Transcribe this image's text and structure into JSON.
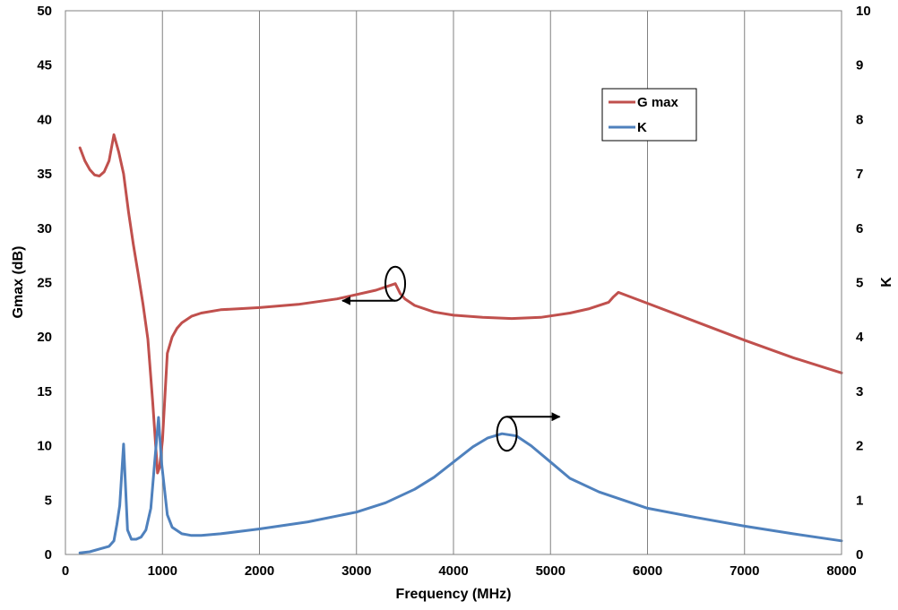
{
  "chart_data": {
    "type": "line",
    "xlabel": "Frequency (MHz)",
    "ylabel_left": "Gmax (dB)",
    "ylabel_right": "K",
    "xlim": [
      0,
      8000
    ],
    "ylim_left": [
      0,
      50
    ],
    "ylim_right": [
      0,
      10
    ],
    "x_ticks": [
      "0",
      "1000",
      "2000",
      "3000",
      "4000",
      "5000",
      "6000",
      "7000",
      "8000"
    ],
    "y_left_ticks": [
      "0",
      "5",
      "10",
      "15",
      "20",
      "25",
      "30",
      "35",
      "40",
      "45",
      "50"
    ],
    "y_right_ticks": [
      "0",
      "1",
      "2",
      "3",
      "4",
      "5",
      "6",
      "7",
      "8",
      "9",
      "10"
    ],
    "grid": "vertical",
    "legend_position": "top-right",
    "series": [
      {
        "name": "G max",
        "axis": "left",
        "color": "#c0504d",
        "x": [
          150,
          200,
          250,
          300,
          350,
          400,
          450,
          500,
          550,
          600,
          650,
          700,
          750,
          800,
          850,
          900,
          950,
          970,
          1000,
          1050,
          1100,
          1150,
          1200,
          1300,
          1400,
          1600,
          1800,
          2000,
          2400,
          2800,
          3200,
          3400,
          3450,
          3500,
          3600,
          3800,
          4000,
          4300,
          4600,
          4900,
          5200,
          5400,
          5600,
          5650,
          5700,
          6000,
          6500,
          7000,
          7500,
          8000
        ],
        "values": [
          37.4,
          36.2,
          35.4,
          34.9,
          34.8,
          35.2,
          36.2,
          38.6,
          37.0,
          35.0,
          31.5,
          28.5,
          25.8,
          23.0,
          19.8,
          14.0,
          7.5,
          8.0,
          10.5,
          18.5,
          20.0,
          20.8,
          21.3,
          21.9,
          22.2,
          22.5,
          22.6,
          22.7,
          23.0,
          23.5,
          24.3,
          24.9,
          24.0,
          23.5,
          22.9,
          22.3,
          22.0,
          21.8,
          21.7,
          21.8,
          22.2,
          22.6,
          23.2,
          23.7,
          24.1,
          23.1,
          21.4,
          19.7,
          18.1,
          16.7
        ]
      },
      {
        "name": "K",
        "axis": "right",
        "color": "#4f81bd",
        "x": [
          150,
          250,
          350,
          450,
          500,
          530,
          560,
          600,
          640,
          680,
          730,
          780,
          830,
          880,
          920,
          960,
          990,
          1050,
          1100,
          1200,
          1300,
          1400,
          1600,
          2000,
          2500,
          3000,
          3300,
          3600,
          3800,
          4000,
          4200,
          4350,
          4500,
          4650,
          4800,
          5000,
          5200,
          5500,
          6000,
          6500,
          7000,
          7500,
          8000
        ],
        "values": [
          0.03,
          0.05,
          0.1,
          0.15,
          0.25,
          0.55,
          0.9,
          2.03,
          0.45,
          0.28,
          0.28,
          0.32,
          0.45,
          0.85,
          1.7,
          2.52,
          1.7,
          0.73,
          0.5,
          0.38,
          0.35,
          0.35,
          0.38,
          0.47,
          0.6,
          0.78,
          0.95,
          1.2,
          1.42,
          1.7,
          1.98,
          2.14,
          2.22,
          2.18,
          2.0,
          1.7,
          1.4,
          1.15,
          0.85,
          0.68,
          0.52,
          0.38,
          0.25
        ]
      }
    ],
    "annotations": [
      {
        "type": "ellipse-arrow",
        "series": "G max",
        "at_x": 3400,
        "at_y": 24.9,
        "arrow": "left"
      },
      {
        "type": "ellipse-arrow",
        "series": "K",
        "at_x": 4550,
        "at_y": 2.22,
        "arrow": "right"
      }
    ]
  }
}
